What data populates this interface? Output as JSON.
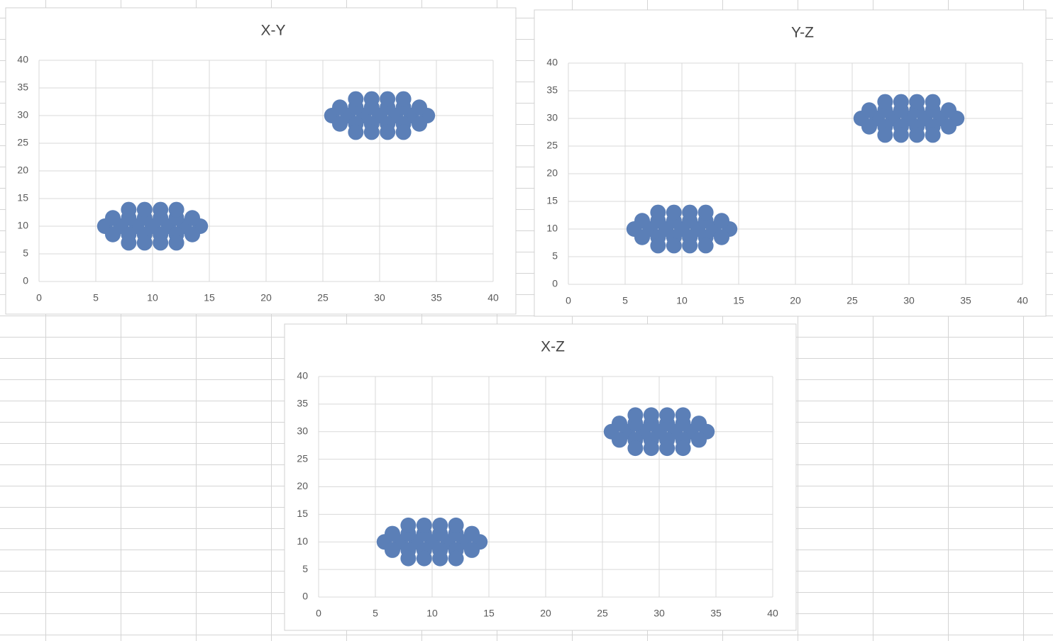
{
  "chart_data": [
    {
      "type": "scatter",
      "title": "X-Y",
      "series": [
        {
          "color": "#5b7fb7",
          "x": [
            5.8,
            7.2,
            8.6,
            10,
            11.4,
            12.8,
            14.2,
            6.5,
            7.9,
            9.3,
            10.7,
            12.1,
            13.5,
            6.5,
            7.9,
            9.3,
            10.7,
            12.1,
            13.5,
            7.9,
            9.3,
            10.7,
            12.1,
            7.9,
            9.3,
            10.7,
            12.1,
            25.8,
            27.2,
            28.6,
            30,
            31.4,
            32.8,
            34.2,
            26.5,
            27.9,
            29.3,
            30.7,
            32.1,
            33.5,
            26.5,
            27.9,
            29.3,
            30.7,
            32.1,
            33.5,
            27.9,
            29.3,
            30.7,
            32.1,
            27.9,
            29.3,
            30.7,
            32.1
          ],
          "values": [
            10,
            10,
            10,
            10,
            10,
            10,
            10,
            11.5,
            11.5,
            11.5,
            11.5,
            11.5,
            11.5,
            8.5,
            8.5,
            8.5,
            8.5,
            8.5,
            8.5,
            13,
            13,
            13,
            13,
            7,
            7,
            7,
            7,
            30,
            30,
            30,
            30,
            30,
            30,
            30,
            31.5,
            31.5,
            31.5,
            31.5,
            31.5,
            31.5,
            28.5,
            28.5,
            28.5,
            28.5,
            28.5,
            28.5,
            33,
            33,
            33,
            33,
            27,
            27,
            27,
            27
          ]
        }
      ],
      "xlim": [
        0,
        40
      ],
      "xticks": [
        0,
        5,
        10,
        15,
        20,
        25,
        30,
        35,
        40
      ],
      "ylim": [
        0,
        40
      ],
      "yticks": [
        0,
        5,
        10,
        15,
        20,
        25,
        30,
        35,
        40
      ],
      "grid": true
    },
    {
      "type": "scatter",
      "title": "Y-Z",
      "series": [
        {
          "color": "#5b7fb7",
          "x": [
            5.8,
            7.2,
            8.6,
            10,
            11.4,
            12.8,
            14.2,
            6.5,
            7.9,
            9.3,
            10.7,
            12.1,
            13.5,
            6.5,
            7.9,
            9.3,
            10.7,
            12.1,
            13.5,
            7.9,
            9.3,
            10.7,
            12.1,
            7.9,
            9.3,
            10.7,
            12.1,
            25.8,
            27.2,
            28.6,
            30,
            31.4,
            32.8,
            34.2,
            26.5,
            27.9,
            29.3,
            30.7,
            32.1,
            33.5,
            26.5,
            27.9,
            29.3,
            30.7,
            32.1,
            33.5,
            27.9,
            29.3,
            30.7,
            32.1,
            27.9,
            29.3,
            30.7,
            32.1
          ],
          "values": [
            10,
            10,
            10,
            10,
            10,
            10,
            10,
            11.5,
            11.5,
            11.5,
            11.5,
            11.5,
            11.5,
            8.5,
            8.5,
            8.5,
            8.5,
            8.5,
            8.5,
            13,
            13,
            13,
            13,
            7,
            7,
            7,
            7,
            30,
            30,
            30,
            30,
            30,
            30,
            30,
            31.5,
            31.5,
            31.5,
            31.5,
            31.5,
            31.5,
            28.5,
            28.5,
            28.5,
            28.5,
            28.5,
            28.5,
            33,
            33,
            33,
            33,
            27,
            27,
            27,
            27
          ]
        }
      ],
      "xlim": [
        0,
        40
      ],
      "xticks": [
        0,
        5,
        10,
        15,
        20,
        25,
        30,
        35,
        40
      ],
      "ylim": [
        0,
        40
      ],
      "yticks": [
        0,
        5,
        10,
        15,
        20,
        25,
        30,
        35,
        40
      ],
      "grid": true
    },
    {
      "type": "scatter",
      "title": "X-Z",
      "series": [
        {
          "color": "#5b7fb7",
          "x": [
            5.8,
            7.2,
            8.6,
            10,
            11.4,
            12.8,
            14.2,
            6.5,
            7.9,
            9.3,
            10.7,
            12.1,
            13.5,
            6.5,
            7.9,
            9.3,
            10.7,
            12.1,
            13.5,
            7.9,
            9.3,
            10.7,
            12.1,
            7.9,
            9.3,
            10.7,
            12.1,
            25.8,
            27.2,
            28.6,
            30,
            31.4,
            32.8,
            34.2,
            26.5,
            27.9,
            29.3,
            30.7,
            32.1,
            33.5,
            26.5,
            27.9,
            29.3,
            30.7,
            32.1,
            33.5,
            27.9,
            29.3,
            30.7,
            32.1,
            27.9,
            29.3,
            30.7,
            32.1
          ],
          "values": [
            10,
            10,
            10,
            10,
            10,
            10,
            10,
            11.5,
            11.5,
            11.5,
            11.5,
            11.5,
            11.5,
            8.5,
            8.5,
            8.5,
            8.5,
            8.5,
            8.5,
            13,
            13,
            13,
            13,
            7,
            7,
            7,
            7,
            30,
            30,
            30,
            30,
            30,
            30,
            30,
            31.5,
            31.5,
            31.5,
            31.5,
            31.5,
            31.5,
            28.5,
            28.5,
            28.5,
            28.5,
            28.5,
            28.5,
            33,
            33,
            33,
            33,
            27,
            27,
            27,
            27
          ]
        }
      ],
      "xlim": [
        0,
        40
      ],
      "xticks": [
        0,
        5,
        10,
        15,
        20,
        25,
        30,
        35,
        40
      ],
      "ylim": [
        0,
        40
      ],
      "yticks": [
        0,
        5,
        10,
        15,
        20,
        25,
        30,
        35,
        40
      ],
      "grid": true
    }
  ]
}
